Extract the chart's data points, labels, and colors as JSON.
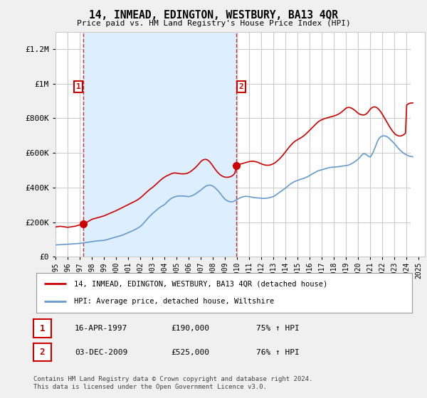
{
  "title": "14, INMEAD, EDINGTON, WESTBURY, BA13 4QR",
  "subtitle": "Price paid vs. HM Land Registry's House Price Index (HPI)",
  "ylabel_ticks": [
    "£0",
    "£200K",
    "£400K",
    "£600K",
    "£800K",
    "£1M",
    "£1.2M"
  ],
  "ytick_values": [
    0,
    200000,
    400000,
    600000,
    800000,
    1000000,
    1200000
  ],
  "ylim": [
    0,
    1300000
  ],
  "xlim_start": 1995.0,
  "xlim_end": 2025.5,
  "purchase1_date": 1997.29,
  "purchase1_price": 190000,
  "purchase2_date": 2009.92,
  "purchase2_price": 525000,
  "legend_line1": "14, INMEAD, EDINGTON, WESTBURY, BA13 4QR (detached house)",
  "legend_line2": "HPI: Average price, detached house, Wiltshire",
  "annotation1_label": "1",
  "annotation1_date": "16-APR-1997",
  "annotation1_price": "£190,000",
  "annotation1_hpi": "75% ↑ HPI",
  "annotation2_label": "2",
  "annotation2_date": "03-DEC-2009",
  "annotation2_price": "£525,000",
  "annotation2_hpi": "76% ↑ HPI",
  "footer": "Contains HM Land Registry data © Crown copyright and database right 2024.\nThis data is licensed under the Open Government Licence v3.0.",
  "red_color": "#cc0000",
  "blue_color": "#6699cc",
  "bg_color": "#f0f0f0",
  "plot_bg": "#ffffff",
  "shade_color": "#ddeeff",
  "grid_color": "#cccccc",
  "hpi_data": {
    "years": [
      1995.0,
      1995.1,
      1995.2,
      1995.3,
      1995.4,
      1995.5,
      1995.6,
      1995.7,
      1995.8,
      1995.9,
      1996.0,
      1996.1,
      1996.2,
      1996.3,
      1996.4,
      1996.5,
      1996.6,
      1996.7,
      1996.8,
      1996.9,
      1997.0,
      1997.1,
      1997.2,
      1997.3,
      1997.4,
      1997.5,
      1997.6,
      1997.7,
      1997.8,
      1997.9,
      1998.0,
      1998.1,
      1998.2,
      1998.3,
      1998.4,
      1998.5,
      1998.6,
      1998.7,
      1998.8,
      1998.9,
      1999.0,
      1999.1,
      1999.2,
      1999.3,
      1999.4,
      1999.5,
      1999.6,
      1999.7,
      1999.8,
      1999.9,
      2000.0,
      2000.1,
      2000.2,
      2000.3,
      2000.4,
      2000.5,
      2000.6,
      2000.7,
      2000.8,
      2000.9,
      2001.0,
      2001.1,
      2001.2,
      2001.3,
      2001.4,
      2001.5,
      2001.6,
      2001.7,
      2001.8,
      2001.9,
      2002.0,
      2002.1,
      2002.2,
      2002.3,
      2002.4,
      2002.5,
      2002.6,
      2002.7,
      2002.8,
      2002.9,
      2003.0,
      2003.1,
      2003.2,
      2003.3,
      2003.4,
      2003.5,
      2003.6,
      2003.7,
      2003.8,
      2003.9,
      2004.0,
      2004.1,
      2004.2,
      2004.3,
      2004.4,
      2004.5,
      2004.6,
      2004.7,
      2004.8,
      2004.9,
      2005.0,
      2005.1,
      2005.2,
      2005.3,
      2005.4,
      2005.5,
      2005.6,
      2005.7,
      2005.8,
      2005.9,
      2006.0,
      2006.1,
      2006.2,
      2006.3,
      2006.4,
      2006.5,
      2006.6,
      2006.7,
      2006.8,
      2006.9,
      2007.0,
      2007.1,
      2007.2,
      2007.3,
      2007.4,
      2007.5,
      2007.6,
      2007.7,
      2007.8,
      2007.9,
      2008.0,
      2008.1,
      2008.2,
      2008.3,
      2008.4,
      2008.5,
      2008.6,
      2008.7,
      2008.8,
      2008.9,
      2009.0,
      2009.1,
      2009.2,
      2009.3,
      2009.4,
      2009.5,
      2009.6,
      2009.7,
      2009.8,
      2009.9,
      2010.0,
      2010.1,
      2010.2,
      2010.3,
      2010.4,
      2010.5,
      2010.6,
      2010.7,
      2010.8,
      2010.9,
      2011.0,
      2011.1,
      2011.2,
      2011.3,
      2011.4,
      2011.5,
      2011.6,
      2011.7,
      2011.8,
      2011.9,
      2012.0,
      2012.1,
      2012.2,
      2012.3,
      2012.4,
      2012.5,
      2012.6,
      2012.7,
      2012.8,
      2012.9,
      2013.0,
      2013.1,
      2013.2,
      2013.3,
      2013.4,
      2013.5,
      2013.6,
      2013.7,
      2013.8,
      2013.9,
      2014.0,
      2014.1,
      2014.2,
      2014.3,
      2014.4,
      2014.5,
      2014.6,
      2014.7,
      2014.8,
      2014.9,
      2015.0,
      2015.1,
      2015.2,
      2015.3,
      2015.4,
      2015.5,
      2015.6,
      2015.7,
      2015.8,
      2015.9,
      2016.0,
      2016.1,
      2016.2,
      2016.3,
      2016.4,
      2016.5,
      2016.6,
      2016.7,
      2016.8,
      2016.9,
      2017.0,
      2017.1,
      2017.2,
      2017.3,
      2017.4,
      2017.5,
      2017.6,
      2017.7,
      2017.8,
      2017.9,
      2018.0,
      2018.1,
      2018.2,
      2018.3,
      2018.4,
      2018.5,
      2018.6,
      2018.7,
      2018.8,
      2018.9,
      2019.0,
      2019.1,
      2019.2,
      2019.3,
      2019.4,
      2019.5,
      2019.6,
      2019.7,
      2019.8,
      2019.9,
      2020.0,
      2020.1,
      2020.2,
      2020.3,
      2020.4,
      2020.5,
      2020.6,
      2020.7,
      2020.8,
      2020.9,
      2021.0,
      2021.1,
      2021.2,
      2021.3,
      2021.4,
      2021.5,
      2021.6,
      2021.7,
      2021.8,
      2021.9,
      2022.0,
      2022.1,
      2022.2,
      2022.3,
      2022.4,
      2022.5,
      2022.6,
      2022.7,
      2022.8,
      2022.9,
      2023.0,
      2023.1,
      2023.2,
      2023.3,
      2023.4,
      2023.5,
      2023.6,
      2023.7,
      2023.8,
      2023.9,
      2024.0,
      2024.1,
      2024.2,
      2024.3,
      2024.4,
      2024.5
    ],
    "values": [
      68000,
      68500,
      69000,
      69200,
      69500,
      70000,
      70500,
      71000,
      71200,
      71500,
      72000,
      72500,
      73000,
      73500,
      74000,
      74500,
      75000,
      75500,
      76000,
      76500,
      77000,
      78000,
      79000,
      80000,
      81000,
      82000,
      83000,
      84000,
      85000,
      86000,
      87000,
      88000,
      89000,
      90000,
      91000,
      92000,
      92500,
      93000,
      93500,
      94000,
      94500,
      96000,
      98000,
      100000,
      102000,
      104000,
      106000,
      108000,
      110000,
      112000,
      114000,
      116000,
      118000,
      120000,
      122000,
      124000,
      127000,
      130000,
      133000,
      136000,
      139000,
      142000,
      145000,
      148000,
      151000,
      155000,
      158000,
      162000,
      166000,
      170000,
      175000,
      181000,
      188000,
      196000,
      204000,
      212000,
      220000,
      228000,
      235000,
      242000,
      249000,
      255000,
      261000,
      267000,
      273000,
      279000,
      284000,
      289000,
      293000,
      297000,
      301000,
      308000,
      315000,
      322000,
      328000,
      334000,
      338000,
      342000,
      345000,
      347000,
      349000,
      350000,
      351000,
      351000,
      351000,
      351000,
      351000,
      350000,
      349000,
      348000,
      347000,
      349000,
      351000,
      354000,
      357000,
      361000,
      365000,
      370000,
      375000,
      380000,
      385000,
      391000,
      397000,
      402000,
      407000,
      411000,
      413000,
      414000,
      413000,
      411000,
      408000,
      403000,
      397000,
      390000,
      383000,
      375000,
      366000,
      357000,
      348000,
      340000,
      332000,
      327000,
      323000,
      320000,
      318000,
      317000,
      318000,
      320000,
      323000,
      327000,
      331000,
      335000,
      339000,
      342000,
      345000,
      347000,
      348000,
      349000,
      349000,
      348000,
      347000,
      346000,
      344000,
      343000,
      342000,
      341000,
      340000,
      340000,
      339000,
      339000,
      338000,
      337000,
      337000,
      337000,
      338000,
      339000,
      340000,
      342000,
      344000,
      346000,
      348000,
      352000,
      357000,
      362000,
      367000,
      372000,
      377000,
      382000,
      387000,
      392000,
      397000,
      403000,
      409000,
      415000,
      420000,
      425000,
      429000,
      433000,
      436000,
      439000,
      441000,
      444000,
      447000,
      449000,
      451000,
      453000,
      456000,
      459000,
      462000,
      466000,
      470000,
      474000,
      478000,
      482000,
      486000,
      490000,
      494000,
      497000,
      499000,
      501000,
      503000,
      505000,
      507000,
      509000,
      511000,
      513000,
      515000,
      516000,
      517000,
      518000,
      518000,
      519000,
      519000,
      520000,
      521000,
      522000,
      523000,
      524000,
      525000,
      526000,
      527000,
      528000,
      530000,
      533000,
      536000,
      540000,
      544000,
      549000,
      554000,
      559000,
      565000,
      572000,
      580000,
      588000,
      594000,
      596000,
      593000,
      588000,
      583000,
      579000,
      576000,
      587000,
      600000,
      616000,
      634000,
      653000,
      669000,
      681000,
      690000,
      695000,
      698000,
      699000,
      698000,
      696000,
      693000,
      688000,
      681000,
      674000,
      667000,
      660000,
      652000,
      644000,
      636000,
      628000,
      620000,
      613000,
      607000,
      601000,
      596000,
      592000,
      588000,
      585000,
      582000,
      580000,
      579000,
      578000
    ]
  },
  "price_data": {
    "years": [
      1995.0,
      1995.1,
      1995.2,
      1995.3,
      1995.4,
      1995.5,
      1995.6,
      1995.7,
      1995.8,
      1995.9,
      1996.0,
      1996.1,
      1996.2,
      1996.3,
      1996.4,
      1996.5,
      1996.6,
      1996.7,
      1996.8,
      1996.9,
      1997.0,
      1997.1,
      1997.2,
      1997.29,
      1997.35,
      1997.5,
      1997.6,
      1997.7,
      1997.8,
      1997.9,
      1998.0,
      1998.2,
      1998.4,
      1998.6,
      1998.8,
      1999.0,
      1999.2,
      1999.4,
      1999.6,
      1999.8,
      2000.0,
      2000.2,
      2000.4,
      2000.6,
      2000.8,
      2001.0,
      2001.2,
      2001.4,
      2001.6,
      2001.8,
      2002.0,
      2002.2,
      2002.4,
      2002.6,
      2002.8,
      2003.0,
      2003.2,
      2003.4,
      2003.6,
      2003.8,
      2004.0,
      2004.2,
      2004.4,
      2004.5,
      2004.6,
      2004.7,
      2004.8,
      2004.9,
      2005.0,
      2005.1,
      2005.2,
      2005.3,
      2005.4,
      2005.5,
      2005.6,
      2005.7,
      2005.8,
      2005.9,
      2006.0,
      2006.1,
      2006.2,
      2006.3,
      2006.4,
      2006.5,
      2006.6,
      2006.7,
      2006.8,
      2006.9,
      2007.0,
      2007.1,
      2007.2,
      2007.3,
      2007.4,
      2007.5,
      2007.6,
      2007.7,
      2007.8,
      2007.9,
      2008.0,
      2008.1,
      2008.2,
      2008.3,
      2008.4,
      2008.5,
      2008.6,
      2008.7,
      2008.8,
      2008.9,
      2009.0,
      2009.1,
      2009.2,
      2009.3,
      2009.4,
      2009.5,
      2009.6,
      2009.7,
      2009.8,
      2009.9,
      2009.92,
      2010.0,
      2010.1,
      2010.2,
      2010.3,
      2010.4,
      2010.5,
      2010.6,
      2010.7,
      2010.8,
      2010.9,
      2011.0,
      2011.1,
      2011.2,
      2011.3,
      2011.4,
      2011.5,
      2011.6,
      2011.7,
      2011.8,
      2011.9,
      2012.0,
      2012.1,
      2012.2,
      2012.3,
      2012.4,
      2012.5,
      2012.6,
      2012.7,
      2012.8,
      2012.9,
      2013.0,
      2013.1,
      2013.2,
      2013.3,
      2013.4,
      2013.5,
      2013.6,
      2013.7,
      2013.8,
      2013.9,
      2014.0,
      2014.1,
      2014.2,
      2014.3,
      2014.4,
      2014.5,
      2014.6,
      2014.7,
      2014.8,
      2014.9,
      2015.0,
      2015.1,
      2015.2,
      2015.3,
      2015.4,
      2015.5,
      2015.6,
      2015.7,
      2015.8,
      2015.9,
      2016.0,
      2016.1,
      2016.2,
      2016.3,
      2016.4,
      2016.5,
      2016.6,
      2016.7,
      2016.8,
      2016.9,
      2017.0,
      2017.1,
      2017.2,
      2017.3,
      2017.4,
      2017.5,
      2017.6,
      2017.7,
      2017.8,
      2017.9,
      2018.0,
      2018.1,
      2018.2,
      2018.3,
      2018.4,
      2018.5,
      2018.6,
      2018.7,
      2018.8,
      2018.9,
      2019.0,
      2019.1,
      2019.2,
      2019.3,
      2019.4,
      2019.5,
      2019.6,
      2019.7,
      2019.8,
      2019.9,
      2020.0,
      2020.1,
      2020.2,
      2020.3,
      2020.4,
      2020.5,
      2020.6,
      2020.7,
      2020.8,
      2020.9,
      2021.0,
      2021.1,
      2021.2,
      2021.3,
      2021.4,
      2021.5,
      2021.6,
      2021.7,
      2021.8,
      2021.9,
      2022.0,
      2022.1,
      2022.2,
      2022.3,
      2022.4,
      2022.5,
      2022.6,
      2022.7,
      2022.8,
      2022.9,
      2023.0,
      2023.1,
      2023.2,
      2023.3,
      2023.4,
      2023.5,
      2023.6,
      2023.7,
      2023.8,
      2023.9,
      2024.0,
      2024.1,
      2024.2,
      2024.3,
      2024.4,
      2024.5
    ],
    "values": [
      172000,
      173000,
      174000,
      175000,
      176000,
      175000,
      174000,
      173000,
      172000,
      171000,
      170000,
      171000,
      172000,
      173000,
      174000,
      175000,
      176000,
      178000,
      180000,
      182000,
      184000,
      186000,
      188000,
      190000,
      192000,
      196000,
      200000,
      204000,
      208000,
      212000,
      216000,
      220000,
      224000,
      228000,
      232000,
      236000,
      242000,
      248000,
      254000,
      260000,
      266000,
      273000,
      280000,
      287000,
      294000,
      301000,
      308000,
      315000,
      322000,
      330000,
      340000,
      352000,
      365000,
      378000,
      390000,
      400000,
      412000,
      425000,
      438000,
      450000,
      460000,
      468000,
      474000,
      478000,
      481000,
      483000,
      484000,
      484000,
      483000,
      482000,
      481000,
      480000,
      479000,
      479000,
      479000,
      480000,
      481000,
      483000,
      486000,
      490000,
      495000,
      500000,
      506000,
      512000,
      519000,
      526000,
      534000,
      542000,
      550000,
      556000,
      560000,
      562000,
      563000,
      561000,
      557000,
      551000,
      543000,
      534000,
      524000,
      514000,
      504000,
      495000,
      487000,
      480000,
      474000,
      469000,
      465000,
      462000,
      460000,
      459000,
      459000,
      460000,
      462000,
      464000,
      468000,
      474000,
      482000,
      510000,
      525000,
      530000,
      532000,
      534000,
      536000,
      538000,
      540000,
      542000,
      544000,
      546000,
      548000,
      550000,
      551000,
      552000,
      552000,
      551000,
      550000,
      548000,
      546000,
      543000,
      540000,
      537000,
      534000,
      532000,
      530000,
      529000,
      529000,
      529000,
      530000,
      532000,
      535000,
      538000,
      542000,
      547000,
      553000,
      559000,
      566000,
      573000,
      581000,
      589000,
      598000,
      607000,
      616000,
      625000,
      634000,
      642000,
      650000,
      657000,
      663000,
      669000,
      673000,
      677000,
      681000,
      685000,
      689000,
      694000,
      699000,
      705000,
      711000,
      718000,
      725000,
      732000,
      739000,
      746000,
      753000,
      760000,
      767000,
      774000,
      780000,
      785000,
      789000,
      792000,
      795000,
      798000,
      800000,
      802000,
      804000,
      806000,
      808000,
      810000,
      812000,
      814000,
      816000,
      819000,
      822000,
      826000,
      830000,
      835000,
      841000,
      847000,
      853000,
      859000,
      862000,
      863000,
      862000,
      860000,
      857000,
      852000,
      847000,
      841000,
      835000,
      829000,
      825000,
      822000,
      820000,
      819000,
      820000,
      823000,
      828000,
      835000,
      844000,
      854000,
      860000,
      864000,
      866000,
      866000,
      863000,
      858000,
      851000,
      843000,
      833000,
      822000,
      810000,
      798000,
      786000,
      774000,
      762000,
      750000,
      739000,
      729000,
      720000,
      712000,
      706000,
      702000,
      699000,
      698000,
      698000,
      700000,
      703000,
      708000,
      714000,
      878000,
      882000,
      886000,
      888000,
      889000,
      889000
    ]
  }
}
